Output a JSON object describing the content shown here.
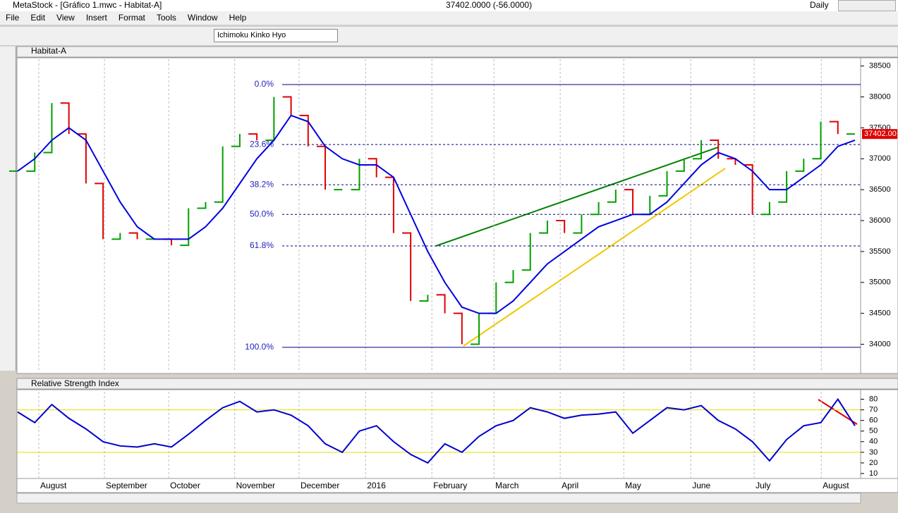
{
  "window": {
    "title": "MetaStock - [Gráfico 1.mwc - Habitat-A]",
    "quote": "37402.0000 (-56.0000)",
    "period": "Daily"
  },
  "menu": [
    "File",
    "Edit",
    "View",
    "Insert",
    "Format",
    "Tools",
    "Window",
    "Help"
  ],
  "toolbar": {
    "indicator": "Ichimoku Kinko Hyo"
  },
  "chart_data": [
    {
      "type": "line",
      "title": "Habitat-A",
      "last_label": "37402.00",
      "xlim": [
        0,
        49
      ],
      "ylim": [
        33550,
        38610
      ],
      "xticks": [
        {
          "value": 1.24,
          "label": "August"
        },
        {
          "value": 5.08,
          "label": "September"
        },
        {
          "value": 8.84,
          "label": "October"
        },
        {
          "value": 12.7,
          "label": "November"
        },
        {
          "value": 16.47,
          "label": "December"
        },
        {
          "value": 20.36,
          "label": "2016"
        },
        {
          "value": 24.24,
          "label": "February"
        },
        {
          "value": 27.87,
          "label": "March"
        },
        {
          "value": 31.75,
          "label": "April"
        },
        {
          "value": 35.47,
          "label": "May"
        },
        {
          "value": 39.39,
          "label": "June"
        },
        {
          "value": 43.1,
          "label": "July"
        },
        {
          "value": 47.03,
          "label": "August"
        }
      ],
      "yticks": [
        34000,
        34500,
        35000,
        35500,
        36000,
        36500,
        37000,
        37500,
        38000,
        38500
      ],
      "fib_levels": [
        {
          "value": 38200,
          "label": "0.0%"
        },
        {
          "value": 37230,
          "label": "23.6%"
        },
        {
          "value": 36580,
          "label": "38.2%"
        },
        {
          "value": 36100,
          "label": "50.0%"
        },
        {
          "value": 35590,
          "label": "61.8%"
        },
        {
          "value": 33950,
          "label": "100.0%"
        }
      ],
      "series": [
        {
          "color": "#00a000",
          "down_color": "#e00000",
          "values": [
            36800,
            37100,
            37900,
            37400,
            36600,
            35700,
            35800,
            35700,
            35700,
            35600,
            36200,
            36300,
            37200,
            37400,
            37300,
            38000,
            37700,
            37200,
            36500,
            36500,
            37000,
            36700,
            35800,
            34700,
            34800,
            34500,
            34000,
            34500,
            35000,
            35200,
            35800,
            36000,
            35800,
            36100,
            36300,
            36500,
            36100,
            36400,
            36800,
            37000,
            37300,
            37000,
            36900,
            36100,
            36300,
            36800,
            37000,
            37600,
            37400,
            37400
          ]
        },
        {
          "color": "#0000e0",
          "values": [
            36800,
            37000,
            37300,
            37500,
            37300,
            36800,
            36300,
            35900,
            35700,
            35700,
            35700,
            35900,
            36200,
            36600,
            37000,
            37300,
            37700,
            37600,
            37200,
            37000,
            36900,
            36900,
            36700,
            36100,
            35500,
            35000,
            34600,
            34500,
            34500,
            34700,
            35000,
            35300,
            35500,
            35700,
            35900,
            36000,
            36100,
            36100,
            36300,
            36600,
            36900,
            37100,
            37000,
            36800,
            36500,
            36500,
            36700,
            36900,
            37200,
            37300
          ]
        }
      ]
    },
    {
      "type": "line",
      "title": "Relative Strength Index",
      "xlim": [
        0,
        49
      ],
      "ylim": [
        6,
        87
      ],
      "yticks": [
        10,
        20,
        30,
        40,
        50,
        60,
        70,
        80
      ],
      "bands": [
        70,
        30
      ],
      "series": [
        {
          "color": "#0000d0",
          "values": [
            68,
            58,
            75,
            62,
            52,
            40,
            36,
            35,
            38,
            35,
            47,
            60,
            72,
            78,
            68,
            70,
            65,
            55,
            38,
            30,
            50,
            55,
            40,
            28,
            20,
            38,
            30,
            45,
            55,
            60,
            72,
            68,
            62,
            65,
            66,
            68,
            48,
            60,
            72,
            70,
            74,
            60,
            52,
            40,
            22,
            42,
            55,
            58,
            80,
            55
          ]
        }
      ]
    }
  ]
}
